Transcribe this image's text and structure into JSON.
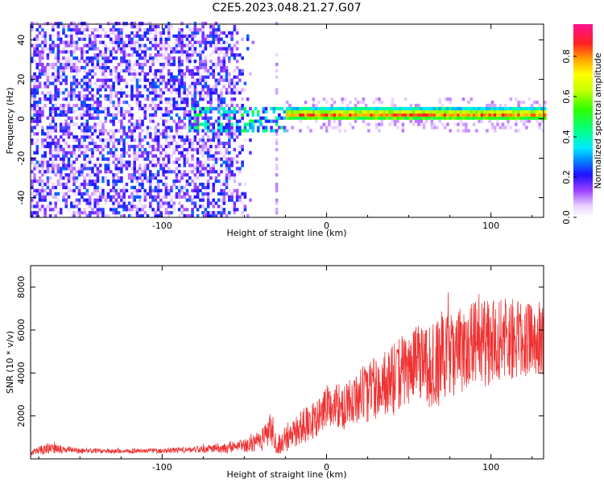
{
  "title": "C2E5.2023.048.21.27.G07",
  "chart_data": [
    {
      "type": "heatmap",
      "title": "C2E5.2023.048.21.27.G07",
      "xlabel": "Height of straight line (km)",
      "ylabel": "Frequency (Hz)",
      "xlim": [
        -180,
        132
      ],
      "ylim": [
        -50,
        48
      ],
      "xticks": [
        -100,
        0,
        100
      ],
      "xtick_labels": [
        "-100",
        "0",
        "100"
      ],
      "yticks": [
        -40,
        -20,
        0,
        20,
        40
      ],
      "ytick_labels": [
        "-40",
        "-20",
        "0",
        "20",
        "40"
      ],
      "colorbar": {
        "label": "Normalized spectral amplitude",
        "range": [
          0,
          0.96
        ],
        "ticks": [
          0.0,
          0.2,
          0.4,
          0.6,
          0.8
        ],
        "tick_labels": [
          "0.0",
          "0.2",
          "0.4",
          "0.6",
          "0.8"
        ]
      },
      "features": [
        {
          "name": "broadband noise",
          "x_range": [
            -180,
            -45
          ],
          "freq_range": [
            -50,
            48
          ],
          "amplitude": 0.1
        },
        {
          "name": "noise column",
          "x_range": [
            -32,
            -30
          ],
          "freq_range": [
            -50,
            48
          ],
          "amplitude": 0.05
        },
        {
          "name": "transition blobs",
          "x_range": [
            -85,
            -25
          ],
          "freq_range": [
            -8,
            6
          ],
          "amplitude": 0.4
        },
        {
          "name": "direct signal",
          "x_range": [
            -25,
            132
          ],
          "freq_center": 1.5,
          "freq_halfwidth": 3,
          "amplitude": 0.85
        }
      ]
    },
    {
      "type": "line",
      "xlabel": "Height of straight line (km)",
      "ylabel": "SNR (10 * v/v)",
      "xlim": [
        -180,
        132
      ],
      "ylim": [
        0,
        9000
      ],
      "xticks": [
        -100,
        0,
        100
      ],
      "xtick_labels": [
        "-100",
        "0",
        "100"
      ],
      "yticks": [
        2000,
        4000,
        6000,
        8000
      ],
      "ytick_labels": [
        "2000",
        "4000",
        "6000",
        "8000"
      ],
      "series": [
        {
          "name": "SNR",
          "color": "#ee3333",
          "envelope": {
            "x": [
              -180,
              -170,
              -150,
              -120,
              -100,
              -80,
              -60,
              -45,
              -38,
              -34,
              -30,
              -25,
              -15,
              -5,
              0,
              10,
              20,
              30,
              40,
              50,
              60,
              70,
              80,
              90,
              100,
              110,
              120,
              132
            ],
            "mean": [
              300,
              500,
              380,
              350,
              380,
              420,
              520,
              700,
              1000,
              1500,
              700,
              900,
              1500,
              1900,
              2500,
              2400,
              2900,
              3300,
              3600,
              4400,
              4300,
              4600,
              5000,
              5300,
              5400,
              5500,
              5600,
              5600
            ],
            "spread": [
              150,
              250,
              120,
              100,
              120,
              150,
              250,
              400,
              500,
              900,
              500,
              600,
              800,
              900,
              1000,
              1100,
              1300,
              1500,
              1700,
              1900,
              2000,
              2000,
              2000,
              2000,
              2000,
              2000,
              1800,
              1700
            ]
          }
        }
      ]
    }
  ]
}
